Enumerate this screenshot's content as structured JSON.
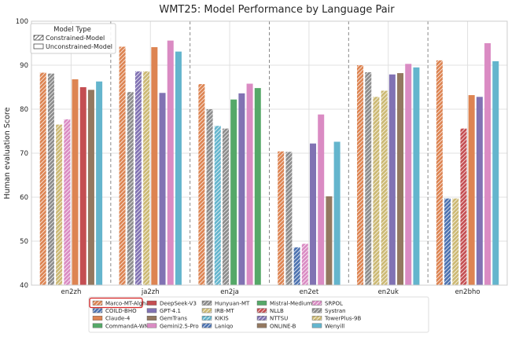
{
  "chart_data": {
    "type": "bar",
    "title": "WMT25: Model Performance by Language Pair",
    "xlabel": "",
    "ylabel": "Human evaluation Score",
    "ylim": [
      40,
      100
    ],
    "yticks": [
      "40",
      "50",
      "60",
      "70",
      "80",
      "90",
      "100"
    ],
    "grid": true,
    "categories": [
      "en2zh",
      "ja2zh",
      "en2ja",
      "en2et",
      "en2uk",
      "en2bho"
    ],
    "groups": [
      [
        {
          "model": "Marco-MT-Algharb",
          "value": 88.3
        },
        {
          "model": "Systran",
          "value": 88.1
        },
        {
          "model": "TowerPlus-9B",
          "value": 76.5
        },
        {
          "model": "SRPOL",
          "value": 77.7
        },
        {
          "model": "Claude-4",
          "value": 86.8
        },
        {
          "model": "DeepSeek-V3",
          "value": 85.0
        },
        {
          "model": "ONLINE-B",
          "value": 84.4
        },
        {
          "model": "Wenyill",
          "value": 86.3
        }
      ],
      [
        {
          "model": "Marco-MT-Algharb",
          "value": 94.2
        },
        {
          "model": "Hunyuan-MT",
          "value": 83.9
        },
        {
          "model": "NTTSU",
          "value": 88.6
        },
        {
          "model": "IRB-MT",
          "value": 88.6
        },
        {
          "model": "Claude-4",
          "value": 94.1
        },
        {
          "model": "GPT-4.1",
          "value": 83.7
        },
        {
          "model": "Gemini2.5-Pro",
          "value": 95.6
        },
        {
          "model": "Wenyill",
          "value": 93.1
        }
      ],
      [
        {
          "model": "Marco-MT-Algharb",
          "value": 85.7
        },
        {
          "model": "Hunyuan-MT",
          "value": 80.0
        },
        {
          "model": "KIKIS",
          "value": 76.2
        },
        {
          "model": "Systran",
          "value": 75.6
        },
        {
          "model": "CommandA-WMT",
          "value": 82.2
        },
        {
          "model": "GPT-4.1",
          "value": 83.6
        },
        {
          "model": "Gemini2.5-Pro",
          "value": 85.8
        },
        {
          "model": "Mistral-Medium",
          "value": 84.8
        }
      ],
      [
        {
          "model": "Marco-MT-Algharb",
          "value": 70.4
        },
        {
          "model": "Systran",
          "value": 70.3
        },
        {
          "model": "Laniqo",
          "value": 48.6
        },
        {
          "model": "SRPOL",
          "value": 49.4
        },
        {
          "model": "GPT-4.1",
          "value": 72.2
        },
        {
          "model": "Gemini2.5-Pro",
          "value": 78.8
        },
        {
          "model": "ONLINE-B",
          "value": 60.2
        },
        {
          "model": "Wenyill",
          "value": 72.6
        }
      ],
      [
        {
          "model": "Marco-MT-Algharb",
          "value": 90.0
        },
        {
          "model": "Systran",
          "value": 88.4
        },
        {
          "model": "TowerPlus-9B",
          "value": 82.8
        },
        {
          "model": "IRB-MT",
          "value": 84.2
        },
        {
          "model": "GPT-4.1",
          "value": 87.9
        },
        {
          "model": "ONLINE-B",
          "value": 88.2
        },
        {
          "model": "Gemini2.5-Pro",
          "value": 90.3
        },
        {
          "model": "Wenyill",
          "value": 89.5
        }
      ],
      [
        {
          "model": "Marco-MT-Algharb",
          "value": 91.1
        },
        {
          "model": "COILD-BHO",
          "value": 59.7
        },
        {
          "model": "TowerPlus-9B",
          "value": 59.7
        },
        {
          "model": "NLLB",
          "value": 75.6
        },
        {
          "model": "Claude-4",
          "value": 83.2
        },
        {
          "model": "GPT-4.1",
          "value": 82.8
        },
        {
          "model": "Gemini2.5-Pro",
          "value": 95.0
        },
        {
          "model": "Wenyill",
          "value": 90.9
        }
      ]
    ],
    "models": [
      {
        "name": "Marco-MT-Algharb",
        "color": "#dd8452",
        "constrained": true,
        "highlighted": true
      },
      {
        "name": "COILD-BHO",
        "color": "#4c72b0",
        "constrained": true
      },
      {
        "name": "Claude-4",
        "color": "#dd8452",
        "constrained": false
      },
      {
        "name": "CommandA-WMT",
        "color": "#55a868",
        "constrained": false
      },
      {
        "name": "DeepSeek-V3",
        "color": "#c44e52",
        "constrained": false
      },
      {
        "name": "GPT-4.1",
        "color": "#8172b3",
        "constrained": false
      },
      {
        "name": "GemTrans",
        "color": "#937860",
        "constrained": false
      },
      {
        "name": "Gemini2.5-Pro",
        "color": "#da8bc3",
        "constrained": false
      },
      {
        "name": "Hunyuan-MT",
        "color": "#8c8c8c",
        "constrained": true
      },
      {
        "name": "IRB-MT",
        "color": "#ccb974",
        "constrained": true
      },
      {
        "name": "KIKIS",
        "color": "#64b5cd",
        "constrained": true
      },
      {
        "name": "Laniqo",
        "color": "#4c72b0",
        "constrained": true
      },
      {
        "name": "Mistral-Medium",
        "color": "#55a868",
        "constrained": false
      },
      {
        "name": "NLLB",
        "color": "#c44e52",
        "constrained": true
      },
      {
        "name": "NTTSU",
        "color": "#8172b3",
        "constrained": true
      },
      {
        "name": "ONLINE-B",
        "color": "#937860",
        "constrained": false
      },
      {
        "name": "SRPOL",
        "color": "#da8bc3",
        "constrained": true
      },
      {
        "name": "Systran",
        "color": "#8c8c8c",
        "constrained": true
      },
      {
        "name": "TowerPlus-9B",
        "color": "#ccb974",
        "constrained": true
      },
      {
        "name": "Wenyill",
        "color": "#64b5cd",
        "constrained": false
      }
    ],
    "type_legend": {
      "title": "Model Type",
      "constrained": "Constrained-Model",
      "unconstrained": "Unconstrained-Model",
      "position": "top-left"
    },
    "model_legend_position": "bottom",
    "highlight_color": "#d62728"
  }
}
